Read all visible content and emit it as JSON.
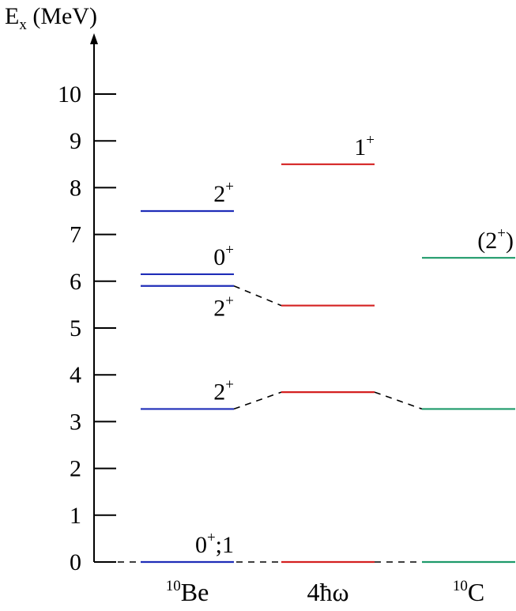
{
  "axis": {
    "title_main": "E",
    "title_sub": "x",
    "title_unit": " (MeV)",
    "ticks": [
      "0",
      "1",
      "2",
      "3",
      "4",
      "5",
      "6",
      "7",
      "8",
      "9",
      "10"
    ],
    "min": 0,
    "max": 10
  },
  "columns": [
    {
      "id": "be10",
      "label_sup": "10",
      "label_main": "Be"
    },
    {
      "id": "hw4",
      "label_sup": "",
      "label_main": "4ħω"
    },
    {
      "id": "c10",
      "label_sup": "10",
      "label_main": "C"
    }
  ],
  "colors": {
    "be10": "#1f2db8",
    "hw4": "#d42020",
    "c10": "#1e9a6a",
    "axis": "#000000",
    "connector": "#000000"
  },
  "levels": [
    {
      "column": "be10",
      "energy": 0.0,
      "label_main": "0",
      "label_sup": "+",
      "label_tail": ";1"
    },
    {
      "column": "be10",
      "energy": 3.27,
      "label_main": "2",
      "label_sup": "+",
      "label_tail": ""
    },
    {
      "column": "be10",
      "energy": 5.9,
      "label_main": "2",
      "label_sup": "+",
      "label_tail": ""
    },
    {
      "column": "be10",
      "energy": 6.15,
      "label_main": "0",
      "label_sup": "+",
      "label_tail": ""
    },
    {
      "column": "be10",
      "energy": 7.5,
      "label_main": "2",
      "label_sup": "+",
      "label_tail": ""
    },
    {
      "column": "hw4",
      "energy": 0.0,
      "label_main": "",
      "label_sup": "",
      "label_tail": ""
    },
    {
      "column": "hw4",
      "energy": 3.63,
      "label_main": "",
      "label_sup": "",
      "label_tail": ""
    },
    {
      "column": "hw4",
      "energy": 5.48,
      "label_main": "",
      "label_sup": "",
      "label_tail": ""
    },
    {
      "column": "hw4",
      "energy": 8.5,
      "label_main": "1",
      "label_sup": "+",
      "label_tail": ""
    },
    {
      "column": "c10",
      "energy": 0.0,
      "label_main": "",
      "label_sup": "",
      "label_tail": ""
    },
    {
      "column": "c10",
      "energy": 3.27,
      "label_main": "",
      "label_sup": "",
      "label_tail": ""
    },
    {
      "column": "c10",
      "energy": 6.5,
      "label_main": "(2",
      "label_sup": "+",
      "label_tail": ")"
    }
  ],
  "connectors": [
    {
      "from_column": "be10",
      "from_energy": 0.0,
      "to_column": "hw4",
      "to_energy": 0.0
    },
    {
      "from_column": "hw4",
      "from_energy": 0.0,
      "to_column": "c10",
      "to_energy": 0.0
    },
    {
      "from_column": "be10",
      "from_energy": 3.27,
      "to_column": "hw4",
      "to_energy": 3.63
    },
    {
      "from_column": "hw4",
      "from_energy": 3.63,
      "to_column": "c10",
      "to_energy": 3.27
    },
    {
      "from_column": "be10",
      "from_energy": 5.9,
      "to_column": "hw4",
      "to_energy": 5.48
    }
  ]
}
